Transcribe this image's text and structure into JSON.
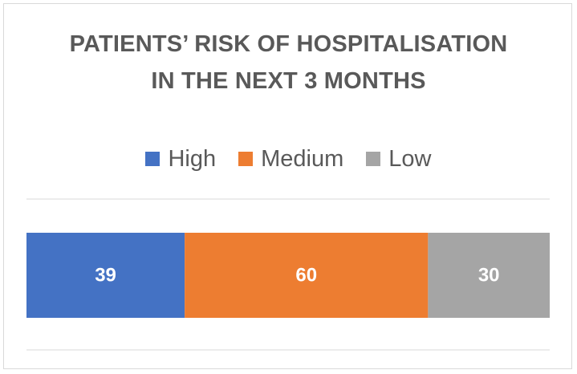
{
  "chart_data": {
    "type": "bar",
    "orientation": "horizontal",
    "stacked": true,
    "title_lines": [
      "PATIENTS’ RISK OF HOSPITALISATION",
      "IN THE NEXT 3 MONTHS"
    ],
    "categories": [
      ""
    ],
    "series": [
      {
        "name": "High",
        "values": [
          39
        ],
        "color": "#4472c4"
      },
      {
        "name": "Medium",
        "values": [
          60
        ],
        "color": "#ed7d31"
      },
      {
        "name": "Low",
        "values": [
          30
        ],
        "color": "#a5a5a5"
      }
    ],
    "legend_position": "top",
    "grid": true,
    "xlim": [
      0,
      129
    ]
  }
}
